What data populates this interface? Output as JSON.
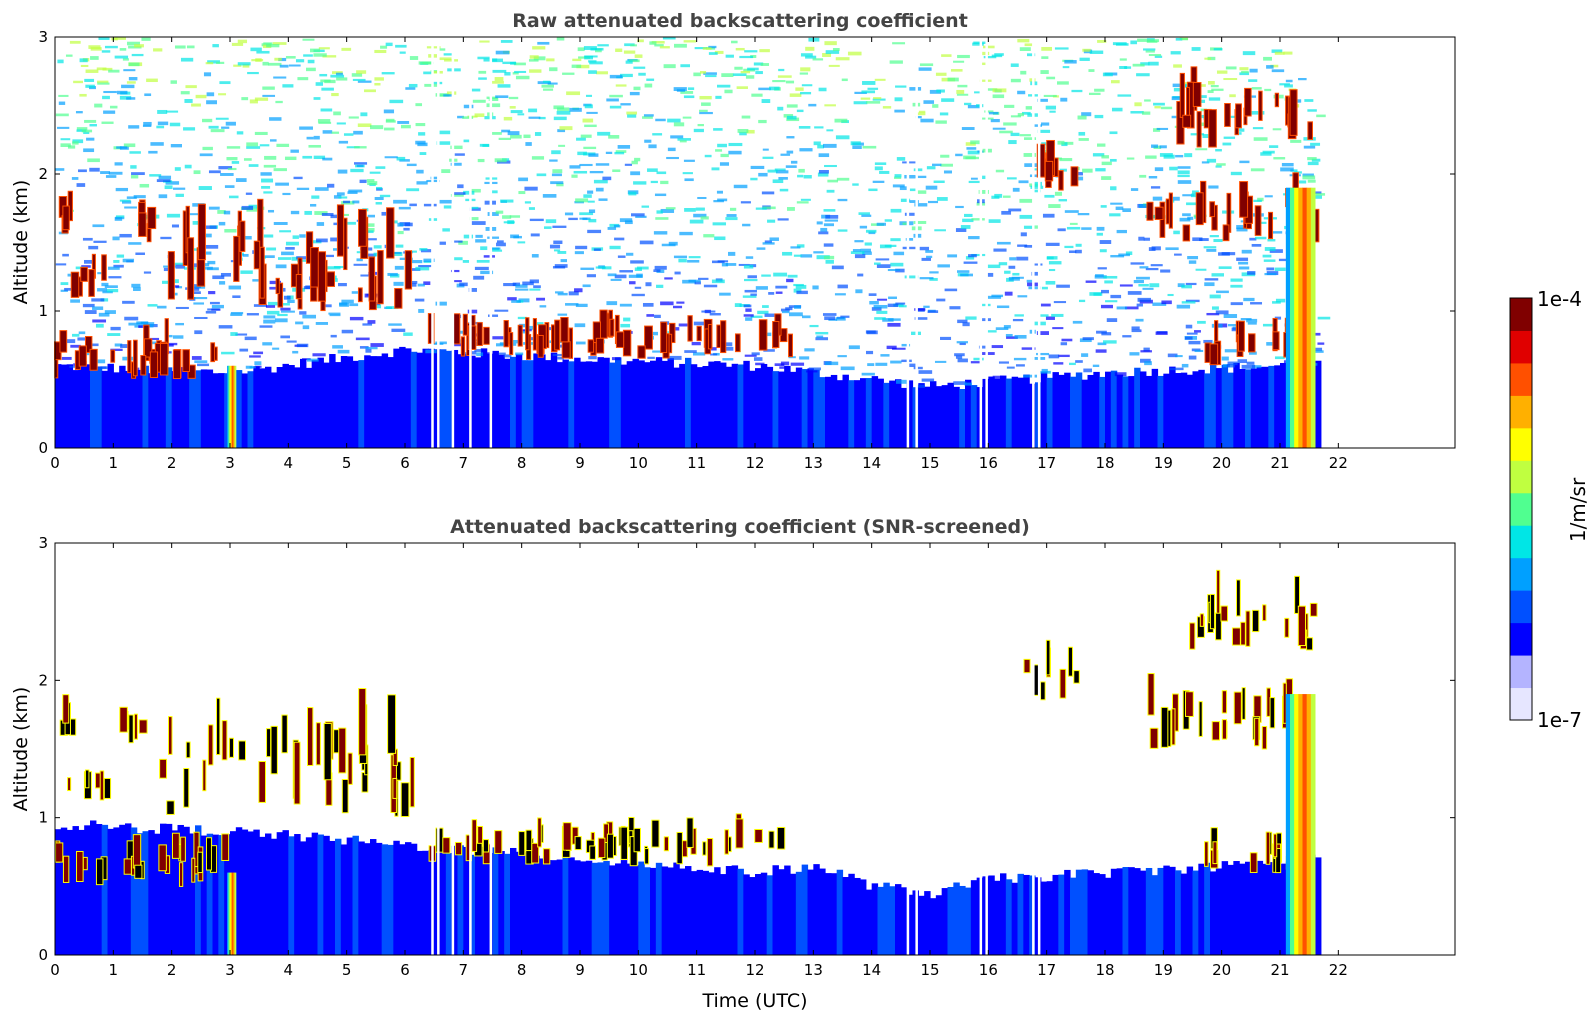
{
  "chart_data": [
    {
      "type": "heatmap",
      "title": "Raw attenuated backscattering coefficient",
      "xlabel": "",
      "ylabel": "Altitude (km)",
      "xlim": [
        0,
        24
      ],
      "ylim": [
        0,
        3
      ],
      "x_ticks": [
        "0",
        "1",
        "2",
        "3",
        "4",
        "5",
        "6",
        "7",
        "8",
        "9",
        "10",
        "11",
        "12",
        "13",
        "14",
        "15",
        "16",
        "17",
        "18",
        "19",
        "20",
        "21",
        "22"
      ],
      "y_ticks": [
        "0",
        "1",
        "2",
        "3"
      ],
      "data_end_time": 21.65,
      "grid": false,
      "screened": false,
      "boundary_layer_top_km": [
        [
          0,
          0.6
        ],
        [
          3,
          0.55
        ],
        [
          6,
          0.72
        ],
        [
          9,
          0.65
        ],
        [
          12,
          0.6
        ],
        [
          15,
          0.45
        ],
        [
          18,
          0.55
        ],
        [
          21,
          0.6
        ],
        [
          21.65,
          0.6
        ]
      ],
      "cloud_layers": [
        {
          "start": 0.0,
          "end": 0.3,
          "base": 1.55,
          "top": 1.85
        },
        {
          "start": 0.0,
          "end": 3.0,
          "base": 0.5,
          "top": 0.85
        },
        {
          "start": 0.2,
          "end": 0.9,
          "base": 1.1,
          "top": 1.35
        },
        {
          "start": 1.1,
          "end": 1.6,
          "base": 1.5,
          "top": 1.75
        },
        {
          "start": 1.8,
          "end": 6.1,
          "base": 1.0,
          "top": 1.8
        },
        {
          "start": 6.4,
          "end": 12.6,
          "base": 0.65,
          "top": 0.95
        },
        {
          "start": 16.6,
          "end": 17.5,
          "base": 1.85,
          "top": 2.2
        },
        {
          "start": 18.7,
          "end": 21.6,
          "base": 1.5,
          "top": 1.95
        },
        {
          "start": 19.2,
          "end": 21.6,
          "base": 2.2,
          "top": 2.7
        },
        {
          "start": 19.7,
          "end": 21.2,
          "base": 0.6,
          "top": 0.9
        }
      ],
      "precipitation": [
        {
          "start": 2.95,
          "end": 3.1,
          "top": 0.6
        },
        {
          "start": 21.1,
          "end": 21.6,
          "top": 1.9
        }
      ],
      "data_gaps": [
        6.45,
        6.55,
        6.8,
        7.1,
        7.45,
        14.6,
        14.75,
        15.85,
        15.95,
        16.75,
        16.85
      ]
    },
    {
      "type": "heatmap",
      "title": "Attenuated backscattering coefficient (SNR-screened)",
      "xlabel": "Time (UTC)",
      "ylabel": "Altitude (km)",
      "xlim": [
        0,
        24
      ],
      "ylim": [
        0,
        3
      ],
      "x_ticks": [
        "0",
        "1",
        "2",
        "3",
        "4",
        "5",
        "6",
        "7",
        "8",
        "9",
        "10",
        "11",
        "12",
        "13",
        "14",
        "15",
        "16",
        "17",
        "18",
        "19",
        "20",
        "21",
        "22"
      ],
      "y_ticks": [
        "0",
        "1",
        "2",
        "3"
      ],
      "data_end_time": 21.65,
      "grid": false,
      "screened": true,
      "boundary_layer_top_km": [
        [
          0,
          0.95
        ],
        [
          3,
          0.9
        ],
        [
          6,
          0.8
        ],
        [
          9,
          0.7
        ],
        [
          12,
          0.6
        ],
        [
          13,
          0.65
        ],
        [
          14,
          0.5
        ],
        [
          15,
          0.45
        ],
        [
          16,
          0.55
        ],
        [
          18,
          0.6
        ],
        [
          20,
          0.65
        ],
        [
          21.65,
          0.7
        ]
      ],
      "cloud_layers": [
        {
          "start": 0.0,
          "end": 0.3,
          "base": 1.55,
          "top": 1.85
        },
        {
          "start": 0.0,
          "end": 3.0,
          "base": 0.5,
          "top": 0.85
        },
        {
          "start": 0.2,
          "end": 0.9,
          "base": 1.1,
          "top": 1.35
        },
        {
          "start": 1.1,
          "end": 1.6,
          "base": 1.5,
          "top": 1.75
        },
        {
          "start": 1.8,
          "end": 6.1,
          "base": 1.0,
          "top": 1.8
        },
        {
          "start": 6.4,
          "end": 12.6,
          "base": 0.65,
          "top": 0.95
        },
        {
          "start": 16.6,
          "end": 17.5,
          "base": 1.85,
          "top": 2.2
        },
        {
          "start": 18.7,
          "end": 21.6,
          "base": 1.5,
          "top": 1.95
        },
        {
          "start": 19.2,
          "end": 21.6,
          "base": 2.2,
          "top": 2.7
        },
        {
          "start": 19.7,
          "end": 21.2,
          "base": 0.6,
          "top": 0.9
        }
      ],
      "precipitation": [
        {
          "start": 2.95,
          "end": 3.1,
          "top": 0.6
        },
        {
          "start": 21.1,
          "end": 21.6,
          "top": 1.9
        }
      ],
      "data_gaps": [
        6.45,
        6.55,
        6.8,
        7.1,
        7.45,
        14.6,
        14.75,
        15.85,
        15.95,
        16.75,
        16.85
      ]
    }
  ],
  "colorbar": {
    "label": "1/m/sr",
    "max_label": "1e-4",
    "min_label": "1e-7",
    "scale": "log",
    "range": [
      1e-07,
      0.0001
    ],
    "colors": [
      "#e6e6ff",
      "#b4b4ff",
      "#0000ff",
      "#0050ff",
      "#00a0ff",
      "#00e6e6",
      "#50ff90",
      "#c0ff40",
      "#ffff00",
      "#ffb000",
      "#ff5000",
      "#e00000",
      "#800000"
    ]
  }
}
